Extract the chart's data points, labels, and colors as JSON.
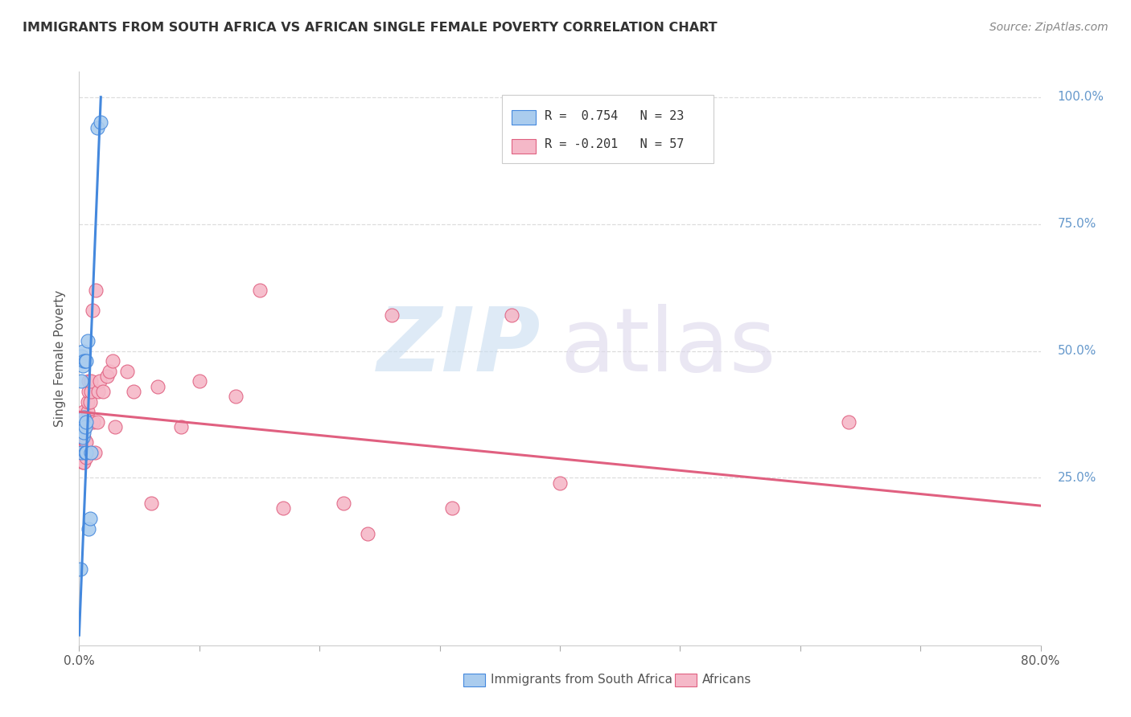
{
  "title": "IMMIGRANTS FROM SOUTH AFRICA VS AFRICAN SINGLE FEMALE POVERTY CORRELATION CHART",
  "source": "Source: ZipAtlas.com",
  "ylabel": "Single Female Poverty",
  "ytick_vals": [
    0.0,
    0.25,
    0.5,
    0.75,
    1.0
  ],
  "ytick_labels": [
    "",
    "25.0%",
    "50.0%",
    "75.0%",
    "100.0%"
  ],
  "xtick_vals": [
    0.0,
    0.1,
    0.2,
    0.3,
    0.4,
    0.5,
    0.6,
    0.7,
    0.8
  ],
  "xmin": 0.0,
  "xmax": 0.8,
  "ymin": -0.08,
  "ymax": 1.05,
  "legend_r1": "R =  0.754",
  "legend_n1": "N = 23",
  "legend_r2": "R = -0.201",
  "legend_n2": "N = 57",
  "color_blue": "#aaccee",
  "color_pink": "#f5b8c8",
  "line_blue": "#4488dd",
  "line_pink": "#e06080",
  "blue_scatter_x": [
    0.001,
    0.002,
    0.002,
    0.002,
    0.003,
    0.003,
    0.003,
    0.003,
    0.004,
    0.004,
    0.004,
    0.005,
    0.005,
    0.005,
    0.006,
    0.006,
    0.006,
    0.007,
    0.008,
    0.009,
    0.01,
    0.015,
    0.018
  ],
  "blue_scatter_y": [
    0.07,
    0.3,
    0.44,
    0.49,
    0.33,
    0.35,
    0.47,
    0.5,
    0.34,
    0.37,
    0.48,
    0.3,
    0.35,
    0.48,
    0.3,
    0.36,
    0.48,
    0.52,
    0.15,
    0.17,
    0.3,
    0.94,
    0.95
  ],
  "pink_scatter_x": [
    0.001,
    0.001,
    0.002,
    0.002,
    0.002,
    0.002,
    0.003,
    0.003,
    0.003,
    0.003,
    0.003,
    0.004,
    0.004,
    0.004,
    0.004,
    0.004,
    0.005,
    0.005,
    0.005,
    0.006,
    0.006,
    0.007,
    0.007,
    0.008,
    0.008,
    0.009,
    0.009,
    0.01,
    0.01,
    0.011,
    0.012,
    0.013,
    0.014,
    0.015,
    0.016,
    0.017,
    0.02,
    0.023,
    0.025,
    0.028,
    0.03,
    0.04,
    0.045,
    0.06,
    0.065,
    0.085,
    0.1,
    0.13,
    0.15,
    0.17,
    0.22,
    0.24,
    0.26,
    0.31,
    0.36,
    0.4,
    0.64
  ],
  "pink_scatter_y": [
    0.3,
    0.32,
    0.29,
    0.3,
    0.31,
    0.32,
    0.28,
    0.3,
    0.31,
    0.33,
    0.34,
    0.28,
    0.3,
    0.33,
    0.35,
    0.38,
    0.3,
    0.32,
    0.35,
    0.29,
    0.32,
    0.38,
    0.4,
    0.42,
    0.44,
    0.36,
    0.4,
    0.42,
    0.44,
    0.58,
    0.36,
    0.3,
    0.62,
    0.36,
    0.42,
    0.44,
    0.42,
    0.45,
    0.46,
    0.48,
    0.35,
    0.46,
    0.42,
    0.2,
    0.43,
    0.35,
    0.44,
    0.41,
    0.62,
    0.19,
    0.2,
    0.14,
    0.57,
    0.19,
    0.57,
    0.24,
    0.36
  ],
  "blue_line_x": [
    0.0,
    0.018
  ],
  "blue_line_y": [
    -0.06,
    1.0
  ],
  "pink_line_x": [
    0.0,
    0.8
  ],
  "pink_line_y": [
    0.38,
    0.195
  ]
}
